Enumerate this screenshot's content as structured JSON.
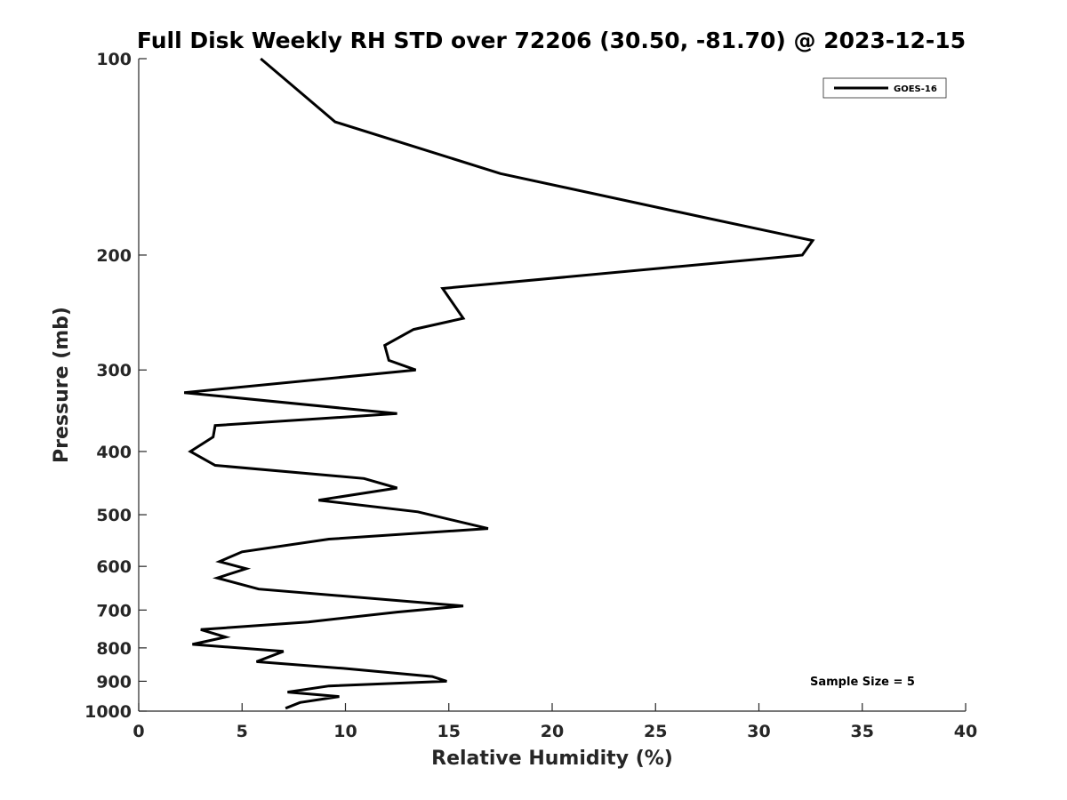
{
  "chart_data": {
    "type": "line",
    "title": "Full Disk Weekly RH STD over 72206 (30.50, -81.70) @ 2023-12-15",
    "xlabel": "Relative Humidity (%)",
    "ylabel": "Pressure (mb)",
    "xlim": [
      0,
      40
    ],
    "ylim": [
      100,
      1000
    ],
    "y_scale": "log",
    "y_reversed": true,
    "x_ticks": [
      "0",
      "5",
      "10",
      "15",
      "20",
      "25",
      "30",
      "35",
      "40"
    ],
    "y_ticks": [
      "100",
      "200",
      "300",
      "400",
      "500",
      "600",
      "700",
      "800",
      "900",
      "1000"
    ],
    "grid": false,
    "legend_position": "top-right",
    "annotation": "Sample Size = 5",
    "series": [
      {
        "name": "GOES-16",
        "color": "#000000",
        "points": [
          [
            5.9,
            100
          ],
          [
            9.5,
            125
          ],
          [
            17.5,
            150
          ],
          [
            27.3,
            175
          ],
          [
            32.6,
            190
          ],
          [
            32.1,
            200
          ],
          [
            14.7,
            225
          ],
          [
            15.7,
            250
          ],
          [
            13.3,
            260
          ],
          [
            11.9,
            275
          ],
          [
            12.1,
            290
          ],
          [
            13.4,
            300
          ],
          [
            2.2,
            325
          ],
          [
            12.5,
            350
          ],
          [
            3.7,
            365
          ],
          [
            3.6,
            380
          ],
          [
            2.5,
            400
          ],
          [
            3.7,
            420
          ],
          [
            10.9,
            440
          ],
          [
            12.5,
            455
          ],
          [
            8.7,
            475
          ],
          [
            13.5,
            495
          ],
          [
            16.9,
            525
          ],
          [
            9.2,
            545
          ],
          [
            5.0,
            570
          ],
          [
            3.9,
            590
          ],
          [
            5.2,
            605
          ],
          [
            3.8,
            625
          ],
          [
            5.8,
            650
          ],
          [
            15.7,
            690
          ],
          [
            12.5,
            705
          ],
          [
            8.2,
            730
          ],
          [
            3.0,
            750
          ],
          [
            4.2,
            770
          ],
          [
            2.6,
            790
          ],
          [
            7.0,
            810
          ],
          [
            5.7,
            840
          ],
          [
            9.9,
            860
          ],
          [
            14.2,
            885
          ],
          [
            14.9,
            900
          ],
          [
            9.2,
            915
          ],
          [
            7.2,
            935
          ],
          [
            9.7,
            950
          ],
          [
            7.8,
            970
          ],
          [
            7.1,
            990
          ]
        ]
      }
    ]
  }
}
